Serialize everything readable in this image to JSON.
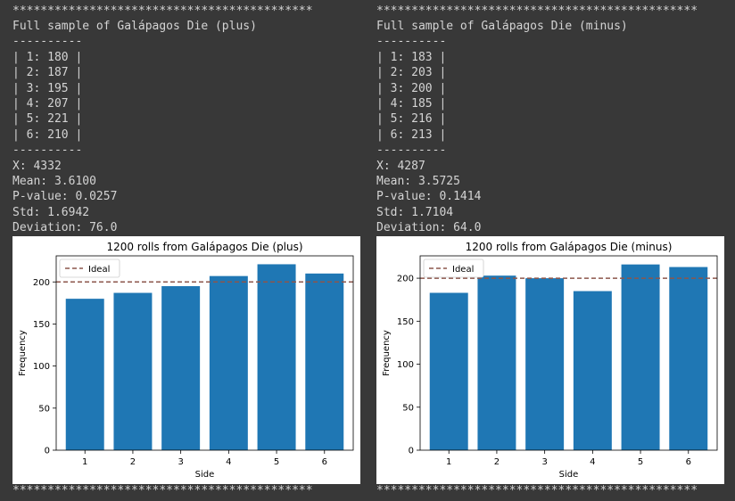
{
  "stars": "*******************************************",
  "stars_right": "**********************************************",
  "panels": [
    {
      "title_line": "Full sample of Galápagos Die (plus)",
      "dashes": "----------",
      "rows": [
        "| 1: 180 |",
        "| 2: 187 |",
        "| 3: 195 |",
        "| 4: 207 |",
        "| 5: 221 |",
        "| 6: 210 |"
      ],
      "x_line": "X: 4332",
      "mean_line": "Mean: 3.6100",
      "pvalue_line": "P-value: 0.0257",
      "std_line": "Std: 1.6942",
      "deviation_line": "Deviation: 76.0"
    },
    {
      "title_line": "Full sample of Galápagos Die (minus)",
      "dashes": "----------",
      "rows": [
        "| 1: 183 |",
        "| 2: 203 |",
        "| 3: 200 |",
        "| 4: 185 |",
        "| 5: 216 |",
        "| 6: 213 |"
      ],
      "x_line": "X: 4287",
      "mean_line": "Mean: 3.5725",
      "pvalue_line": "P-value: 0.1414",
      "std_line": "Std: 1.7104",
      "deviation_line": "Deviation: 64.0"
    }
  ],
  "chart_data": [
    {
      "type": "bar",
      "title": "1200 rolls from Galápagos Die (plus)",
      "xlabel": "Side",
      "ylabel": "Frequency",
      "categories": [
        "1",
        "2",
        "3",
        "4",
        "5",
        "6"
      ],
      "values": [
        180,
        187,
        195,
        207,
        221,
        210
      ],
      "ideal": 200,
      "legend": "Ideal",
      "legend_position": "top-left",
      "ylim": [
        0,
        231
      ],
      "yticks": [
        0,
        50,
        100,
        150,
        200
      ],
      "bar_color": "#1f77b4",
      "ideal_color": "#8c564b"
    },
    {
      "type": "bar",
      "title": "1200 rolls from Galápagos Die (minus)",
      "xlabel": "Side",
      "ylabel": "Frequency",
      "categories": [
        "1",
        "2",
        "3",
        "4",
        "5",
        "6"
      ],
      "values": [
        183,
        203,
        200,
        185,
        216,
        213
      ],
      "ideal": 200,
      "legend": "Ideal",
      "legend_position": "top-left",
      "ylim": [
        0,
        226
      ],
      "yticks": [
        0,
        50,
        100,
        150,
        200
      ],
      "bar_color": "#1f77b4",
      "ideal_color": "#8c564b"
    }
  ]
}
